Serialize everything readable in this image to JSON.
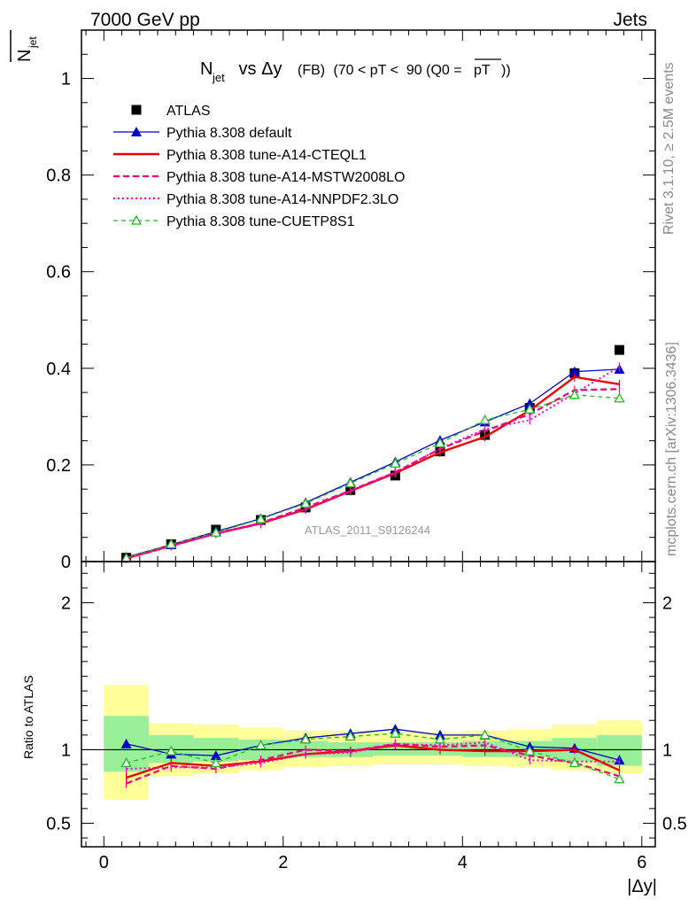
{
  "header": {
    "left": "7000 GeV pp",
    "right": "Jets"
  },
  "side_labels": {
    "rivet": "Rivet 3.1.10, ≥ 2.5M events",
    "mcplots": "mcplots.cern.ch [arXiv:1306.3436]"
  },
  "watermark": "ATLAS_2011_S9126244",
  "chart_data": [
    {
      "type": "line",
      "title_parts": {
        "n": "N",
        "sub": "jet",
        "vs": " vs Δy ",
        "fb": "(FB)",
        "rest": " (70 < pT <  90 (Q0 =",
        "over": "pT",
        "end": "))"
      },
      "ylabel": {
        "n": "N",
        "sub": "jet"
      },
      "xlim": [
        -0.25,
        6.15
      ],
      "ylim": [
        0,
        1.1
      ],
      "yticks": [
        0,
        0.2,
        0.4,
        0.6,
        0.8,
        1
      ],
      "ytick_labels": [
        "0",
        "0.2",
        "0.4",
        "0.6",
        "0.8",
        "1"
      ],
      "x": [
        0.25,
        0.75,
        1.25,
        1.75,
        2.25,
        2.75,
        3.25,
        3.75,
        4.25,
        4.75,
        5.25,
        5.75
      ],
      "series": [
        {
          "name": "ATLAS",
          "color": "#000000",
          "style": "data",
          "values": [
            0.008,
            0.036,
            0.066,
            0.086,
            0.112,
            0.148,
            0.178,
            0.228,
            0.262,
            0.318,
            0.39,
            0.438
          ]
        },
        {
          "name": "Pythia 8.308 default",
          "color": "#0000cc",
          "style": "solid-thin",
          "marker": "triangle",
          "values": [
            0.009,
            0.035,
            0.062,
            0.089,
            0.122,
            0.164,
            0.206,
            0.251,
            0.289,
            0.327,
            0.393,
            0.398
          ]
        },
        {
          "name": "Pythia 8.308 tune-A14-CTEQL1",
          "color": "#ee0000",
          "style": "solid-thick",
          "values": [
            0.007,
            0.033,
            0.058,
            0.079,
            0.108,
            0.146,
            0.183,
            0.226,
            0.258,
            0.313,
            0.382,
            0.367
          ]
        },
        {
          "name": "Pythia 8.308 tune-A14-MSTW2008LO",
          "color": "#ee0077",
          "style": "dashed",
          "values": [
            0.006,
            0.032,
            0.058,
            0.08,
            0.112,
            0.147,
            0.185,
            0.233,
            0.27,
            0.305,
            0.355,
            0.357
          ]
        },
        {
          "name": "Pythia 8.308 tune-A14-NNPDF2.3LO",
          "color": "#ff00cc",
          "style": "dotted",
          "values": [
            0.007,
            0.032,
            0.058,
            0.078,
            0.108,
            0.146,
            0.185,
            0.234,
            0.274,
            0.293,
            0.348,
            0.403
          ]
        },
        {
          "name": "Pythia 8.308 tune-CUETP8S1",
          "color": "#22bb22",
          "style": "dashed-thin",
          "marker": "open-triangle",
          "values": [
            0.007,
            0.036,
            0.06,
            0.088,
            0.12,
            0.162,
            0.203,
            0.245,
            0.293,
            0.315,
            0.345,
            0.338
          ]
        }
      ]
    },
    {
      "type": "line",
      "ylabel": "Ratio to ATLAS",
      "xlabel": "|Δy|",
      "xlim": [
        -0.25,
        6.15
      ],
      "ylim": [
        0.34,
        2.28
      ],
      "yticks": [
        0.5,
        1,
        2
      ],
      "ytick_labels": [
        "0.5",
        "1",
        "2"
      ],
      "xticks": [
        0,
        2,
        4,
        6
      ],
      "xtick_labels": [
        "0",
        "2",
        "4",
        "6"
      ],
      "x": [
        0.25,
        0.75,
        1.25,
        1.75,
        2.25,
        2.75,
        3.25,
        3.75,
        4.25,
        4.75,
        5.25,
        5.75
      ],
      "x_bins": [
        [
          0,
          0.5
        ],
        [
          0.5,
          1
        ],
        [
          1,
          1.5
        ],
        [
          1.5,
          2
        ],
        [
          2,
          2.5
        ],
        [
          2.5,
          3
        ],
        [
          3,
          3.5
        ],
        [
          3.5,
          4
        ],
        [
          4,
          4.5
        ],
        [
          4.5,
          5
        ],
        [
          5,
          5.5
        ],
        [
          5.5,
          6
        ]
      ],
      "band_stat": [
        [
          0.85,
          1.23
        ],
        [
          0.91,
          1.1
        ],
        [
          0.92,
          1.08
        ],
        [
          0.93,
          1.07
        ],
        [
          0.95,
          1.06
        ],
        [
          0.95,
          1.05
        ],
        [
          0.96,
          1.05
        ],
        [
          0.96,
          1.05
        ],
        [
          0.95,
          1.06
        ],
        [
          0.95,
          1.06
        ],
        [
          0.92,
          1.08
        ],
        [
          0.89,
          1.1
        ]
      ],
      "band_total": [
        [
          0.66,
          1.44
        ],
        [
          0.82,
          1.18
        ],
        [
          0.84,
          1.17
        ],
        [
          0.86,
          1.15
        ],
        [
          0.88,
          1.13
        ],
        [
          0.89,
          1.13
        ],
        [
          0.9,
          1.12
        ],
        [
          0.9,
          1.12
        ],
        [
          0.89,
          1.13
        ],
        [
          0.88,
          1.14
        ],
        [
          0.86,
          1.17
        ],
        [
          0.84,
          1.2
        ]
      ],
      "series": [
        {
          "name": "Pythia 8.308 default",
          "color": "#0000cc",
          "style": "solid-thin",
          "marker": "triangle",
          "values": [
            1.04,
            0.97,
            0.96,
            1.03,
            1.08,
            1.11,
            1.14,
            1.1,
            1.1,
            1.02,
            1.01,
            0.93
          ]
        },
        {
          "name": "Pythia 8.308 tune-A14-CTEQL1",
          "color": "#ee0000",
          "style": "solid-thick",
          "values": [
            0.81,
            0.91,
            0.89,
            0.92,
            0.97,
            0.99,
            1.03,
            1.0,
            0.99,
            0.99,
            1.0,
            0.86
          ]
        },
        {
          "name": "Pythia 8.308 tune-A14-MSTW2008LO",
          "color": "#ee0077",
          "style": "dashed",
          "values": [
            0.77,
            0.89,
            0.87,
            0.93,
            1.0,
            0.99,
            1.04,
            1.02,
            1.03,
            0.96,
            0.91,
            0.82
          ]
        },
        {
          "name": "Pythia 8.308 tune-A14-NNPDF2.3LO",
          "color": "#ff00cc",
          "style": "dotted",
          "values": [
            0.87,
            0.88,
            0.88,
            0.91,
            0.97,
            0.98,
            1.04,
            1.03,
            1.05,
            0.93,
            0.92,
            0.92
          ]
        },
        {
          "name": "Pythia 8.308 tune-CUETP8S1",
          "color": "#22bb22",
          "style": "dashed-thin",
          "marker": "open-triangle",
          "values": [
            0.91,
            0.99,
            0.91,
            1.03,
            1.07,
            1.09,
            1.11,
            1.07,
            1.1,
            0.99,
            0.91,
            0.8
          ]
        }
      ]
    }
  ]
}
